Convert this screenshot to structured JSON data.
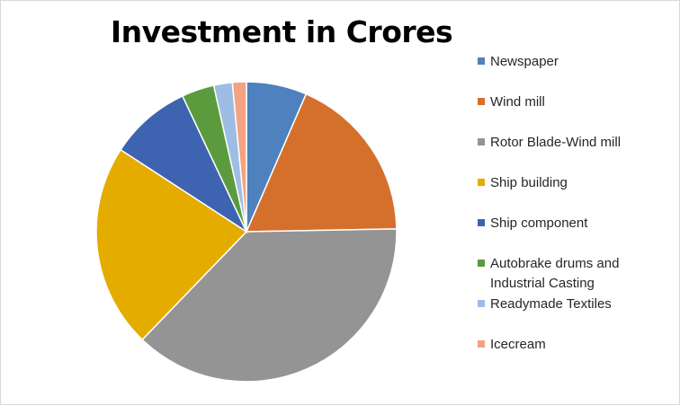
{
  "chart_data": {
    "type": "pie",
    "title": "Investment in Crores",
    "legend_position": "right",
    "series": [
      {
        "label": "Newspaper",
        "value": 6.5,
        "color": "#4E81BD"
      },
      {
        "label": "Wind mill",
        "value": 18.2,
        "color": "#D4702B"
      },
      {
        "label": "Rotor Blade-Wind mill",
        "value": 37.5,
        "color": "#949494"
      },
      {
        "label": "Ship building",
        "value": 22.0,
        "color": "#E5AC00"
      },
      {
        "label": "Ship component",
        "value": 8.8,
        "color": "#3E63B0"
      },
      {
        "label": "Autobrake drums and Industrial Casting",
        "value": 3.5,
        "color": "#5B9B3E"
      },
      {
        "label": "Readymade Textiles",
        "value": 2.0,
        "color": "#9EBDE5"
      },
      {
        "label": "Icecream",
        "value": 1.5,
        "color": "#F2A381"
      }
    ]
  }
}
